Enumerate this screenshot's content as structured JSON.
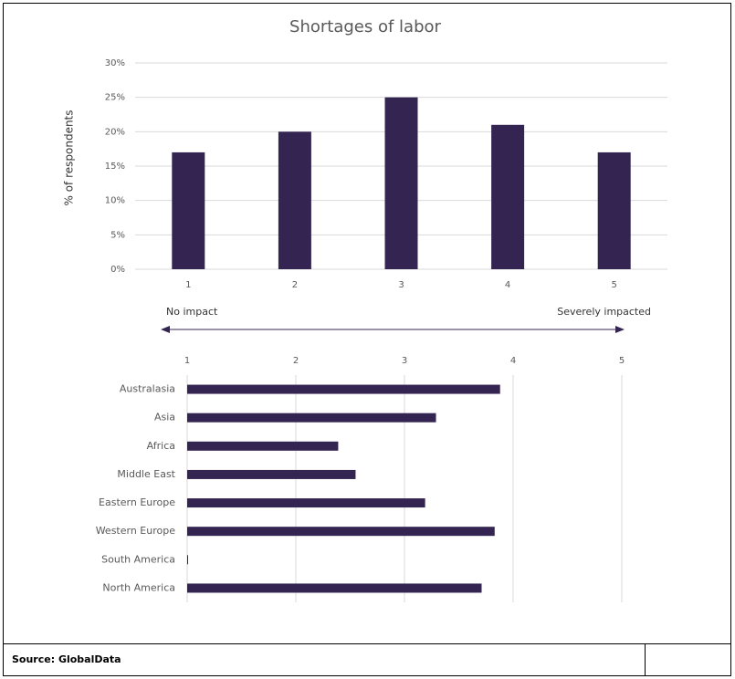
{
  "chart_data": [
    {
      "type": "bar",
      "title": "Shortages of labor",
      "y_label": "% of respondents",
      "categories": [
        "1",
        "2",
        "3",
        "4",
        "5"
      ],
      "values": [
        17,
        20,
        25,
        21,
        17
      ],
      "color": "#332452",
      "ylim": [
        0,
        30
      ],
      "yticks": [
        {
          "value": 0,
          "label": "0%"
        },
        {
          "value": 5,
          "label": "5%"
        },
        {
          "value": 10,
          "label": "10%"
        },
        {
          "value": 15,
          "label": "15%"
        },
        {
          "value": 20,
          "label": "20%"
        },
        {
          "value": 25,
          "label": "25%"
        },
        {
          "value": 30,
          "label": "30%"
        }
      ],
      "grid": true
    },
    {
      "type": "hbar",
      "annotations": [
        "No impact",
        "Severely impacted"
      ],
      "categories": [
        "Australasia",
        "Asia",
        "Africa",
        "Middle East",
        "Eastern Europe",
        "Western Europe",
        "South America",
        "North America"
      ],
      "values": [
        3.88,
        3.29,
        2.39,
        2.55,
        3.19,
        3.83,
        1.0,
        3.71
      ],
      "color": "#332452",
      "xlim": [
        1,
        5
      ],
      "xticks": [
        1,
        2,
        3,
        4,
        5
      ],
      "grid": true
    }
  ],
  "footer": {
    "source": "Source: GlobalData"
  }
}
